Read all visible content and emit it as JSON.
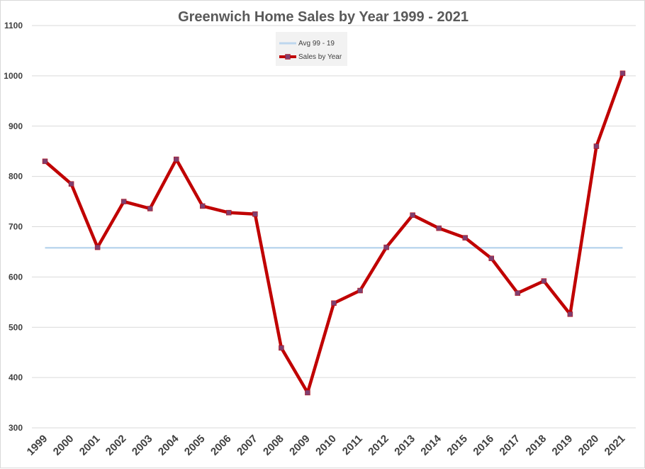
{
  "chart_data": {
    "type": "line",
    "title": "Greenwich Home Sales by Year 1999 - 2021",
    "xlabel": "",
    "ylabel": "",
    "categories": [
      "1999",
      "2000",
      "2001",
      "2002",
      "2003",
      "2004",
      "2005",
      "2006",
      "2007",
      "2008",
      "2009",
      "2010",
      "2011",
      "2012",
      "2013",
      "2014",
      "2015",
      "2016",
      "2017",
      "2018",
      "2019",
      "2020",
      "2021"
    ],
    "ylim": [
      300,
      1100
    ],
    "yticks": [
      300,
      400,
      500,
      600,
      700,
      800,
      900,
      1000,
      1100
    ],
    "grid": true,
    "legend_position": "top-center",
    "series": [
      {
        "name": "Avg 99 - 19",
        "color": "#bdd7ee",
        "values": [
          658,
          658,
          658,
          658,
          658,
          658,
          658,
          658,
          658,
          658,
          658,
          658,
          658,
          658,
          658,
          658,
          658,
          658,
          658,
          658,
          658,
          658,
          658
        ]
      },
      {
        "name": "Sales by Year",
        "color": "#c00000",
        "marker_color": "#7f3f6f",
        "values": [
          830,
          785,
          659,
          750,
          736,
          834,
          741,
          728,
          725,
          459,
          370,
          548,
          573,
          659,
          723,
          697,
          678,
          637,
          568,
          592,
          526,
          860,
          1005
        ]
      }
    ]
  }
}
